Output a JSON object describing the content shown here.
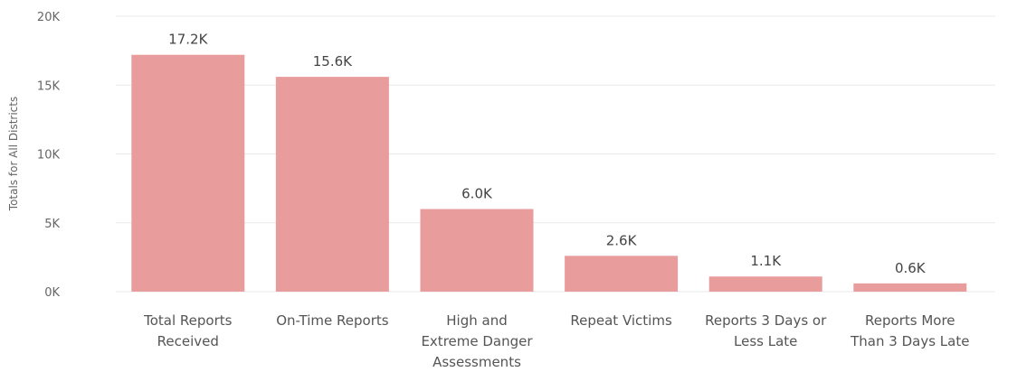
{
  "chart_data": {
    "type": "bar",
    "categories": [
      [
        "Total Reports",
        "Received"
      ],
      [
        "On-Time Reports"
      ],
      [
        "High and",
        "Extreme Danger",
        "Assessments"
      ],
      [
        "Repeat Victims"
      ],
      [
        "Reports 3 Days or",
        "Less Late"
      ],
      [
        "Reports More",
        "Than 3 Days Late"
      ]
    ],
    "values": [
      17200,
      15600,
      6000,
      2600,
      1100,
      600
    ],
    "data_labels": [
      "17.2K",
      "15.6K",
      "6.0K",
      "2.6K",
      "1.1K",
      "0.6K"
    ],
    "ylabel": "Totals for All Districts",
    "xlabel": "",
    "ylim": [
      0,
      20000
    ],
    "yticks": [
      0,
      5000,
      10000,
      15000,
      20000
    ],
    "ytick_labels": [
      "0K",
      "5K",
      "10K",
      "15K",
      "20K"
    ],
    "grid": true,
    "legend": "none",
    "bar_color": "#e99c9c"
  }
}
